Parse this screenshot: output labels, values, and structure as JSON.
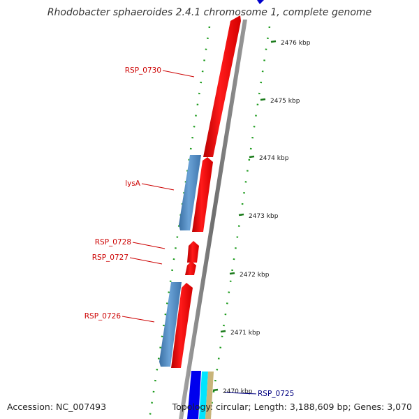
{
  "title": "Rhodobacter sphaeroides 2.4.1 chromosome 1, complete genome",
  "footer": {
    "accession": "Accession: NC_007493",
    "summary": "Topology: circular; Length: 3,188,609 bp; Genes: 3,070"
  },
  "scale_ticks": [
    {
      "position_kbp": 2476,
      "label": "2476 kbp"
    },
    {
      "position_kbp": 2475,
      "label": "2475 kbp"
    },
    {
      "position_kbp": 2474,
      "label": "2474 kbp"
    },
    {
      "position_kbp": 2473,
      "label": "2473 kbp"
    },
    {
      "position_kbp": 2472,
      "label": "2472 kbp"
    },
    {
      "position_kbp": 2471,
      "label": "2471 kbp"
    },
    {
      "position_kbp": 2470,
      "label": "2470 kbp"
    }
  ],
  "gene_labels": [
    {
      "name": "RSP_0730",
      "color": "#cc0000"
    },
    {
      "name": "lysA",
      "color": "#cc0000"
    },
    {
      "name": "RSP_0728",
      "color": "#cc0000"
    },
    {
      "name": "RSP_0727",
      "color": "#cc0000"
    },
    {
      "name": "RSP_0726",
      "color": "#cc0000"
    },
    {
      "name": "RSP_0725",
      "color": "#000080"
    }
  ],
  "colors": {
    "gene_red": "#ff0000",
    "gene_blue": "#4d86c0",
    "backbone": "#888888",
    "tick_green": "#1a7a1a",
    "label_red": "#cc0000",
    "label_navy": "#000080",
    "cds_blue": "#0000ee",
    "cds_cyan": "#00e5ff",
    "cds_tan": "#c8b47a"
  }
}
